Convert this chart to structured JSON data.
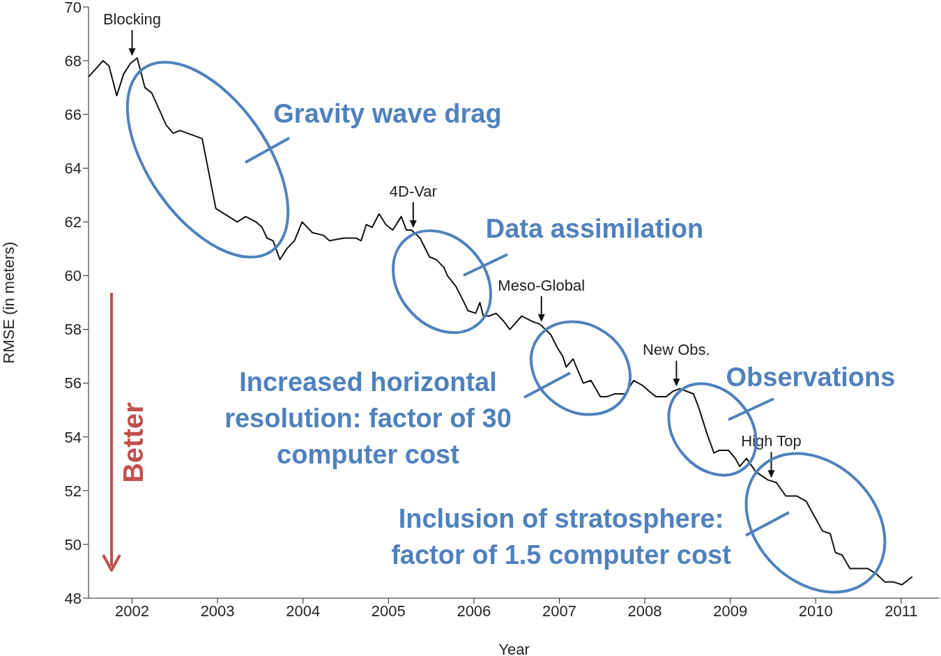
{
  "chart_data": {
    "type": "line",
    "xlabel": "Year",
    "ylabel": "RMSE (in meters)",
    "xlim": [
      2001.49,
      2011.45
    ],
    "ylim": [
      48,
      70
    ],
    "xticks": [
      2002,
      2003,
      2004,
      2005,
      2006,
      2007,
      2008,
      2009,
      2010,
      2011
    ],
    "yticks": [
      48,
      50,
      52,
      54,
      56,
      58,
      60,
      62,
      64,
      66,
      68,
      70
    ],
    "grid": false,
    "legend": false,
    "marker": "none",
    "line_style": "solid",
    "x": [
      2001.49,
      2001.66,
      2001.73,
      2001.82,
      2001.9,
      2001.98,
      2002.06,
      2002.15,
      2002.23,
      2002.4,
      2002.48,
      2002.56,
      2002.65,
      2002.82,
      2002.98,
      2003.13,
      2003.23,
      2003.33,
      2003.45,
      2003.52,
      2003.58,
      2003.65,
      2003.73,
      2003.81,
      2003.9,
      2003.99,
      2004.11,
      2004.24,
      2004.31,
      2004.48,
      2004.62,
      2004.68,
      2004.74,
      2004.81,
      2004.89,
      2004.97,
      2005.05,
      2005.15,
      2005.21,
      2005.27,
      2005.37,
      2005.48,
      2005.56,
      2005.65,
      2005.69,
      2005.79,
      2005.87,
      2005.93,
      2006.02,
      2006.07,
      2006.11,
      2006.18,
      2006.26,
      2006.35,
      2006.42,
      2006.56,
      2006.68,
      2006.77,
      2006.9,
      2006.98,
      2007.04,
      2007.08,
      2007.16,
      2007.28,
      2007.37,
      2007.48,
      2007.56,
      2007.65,
      2007.77,
      2007.87,
      2007.98,
      2008.05,
      2008.13,
      2008.25,
      2008.33,
      2008.41,
      2008.49,
      2008.57,
      2008.63,
      2008.73,
      2008.81,
      2008.87,
      2008.98,
      2009.06,
      2009.11,
      2009.19,
      2009.3,
      2009.44,
      2009.54,
      2009.65,
      2009.78,
      2009.89,
      2009.94,
      2010.08,
      2010.17,
      2010.23,
      2010.31,
      2010.4,
      2010.51,
      2010.61,
      2010.71,
      2010.81,
      2010.91,
      2011.01,
      2011.13
    ],
    "series": [
      {
        "color": "#111111",
        "values": [
          67.4,
          68.0,
          67.8,
          66.7,
          67.5,
          67.9,
          68.1,
          67.0,
          66.8,
          65.6,
          65.3,
          65.4,
          65.3,
          65.1,
          62.5,
          62.2,
          62.0,
          62.2,
          62.0,
          61.8,
          61.4,
          61.3,
          60.6,
          61.0,
          61.3,
          62.0,
          61.6,
          61.5,
          61.3,
          61.4,
          61.4,
          61.3,
          61.9,
          61.8,
          62.3,
          61.9,
          61.7,
          62.2,
          61.7,
          61.7,
          61.4,
          60.7,
          60.6,
          60.3,
          60.0,
          59.6,
          59.1,
          58.7,
          58.6,
          59.0,
          58.5,
          58.5,
          58.6,
          58.3,
          58.0,
          58.5,
          58.3,
          58.2,
          57.8,
          57.3,
          57.0,
          56.6,
          56.9,
          56.0,
          56.1,
          55.5,
          55.5,
          55.6,
          55.6,
          56.1,
          55.9,
          55.7,
          55.5,
          55.5,
          55.7,
          55.8,
          55.7,
          55.6,
          55.1,
          54.1,
          53.4,
          53.5,
          53.5,
          53.2,
          52.9,
          53.2,
          52.7,
          52.4,
          52.3,
          51.8,
          51.8,
          51.6,
          51.3,
          50.5,
          50.4,
          49.7,
          49.6,
          49.1,
          49.1,
          49.1,
          48.9,
          48.6,
          48.6,
          48.5,
          48.8
        ]
      }
    ],
    "annotations": [
      {
        "text": "Blocking",
        "x": 2002.0,
        "y": 68.1
      },
      {
        "text": "4D-Var",
        "x": 2005.29,
        "y": 61.7
      },
      {
        "text": "Meso-Global",
        "x": 2006.79,
        "y": 58.2
      },
      {
        "text": "New Obs.",
        "x": 2008.37,
        "y": 55.8
      },
      {
        "text": "High Top",
        "x": 2009.48,
        "y": 52.4
      },
      "Gravity wave drag",
      "Data assimilation",
      "Increased horizontal\nresolution: factor of 30\ncomputer cost",
      "Observations",
      "Inclusion of stratosphere:\nfactor of 1.5 computer cost",
      "Better"
    ]
  }
}
